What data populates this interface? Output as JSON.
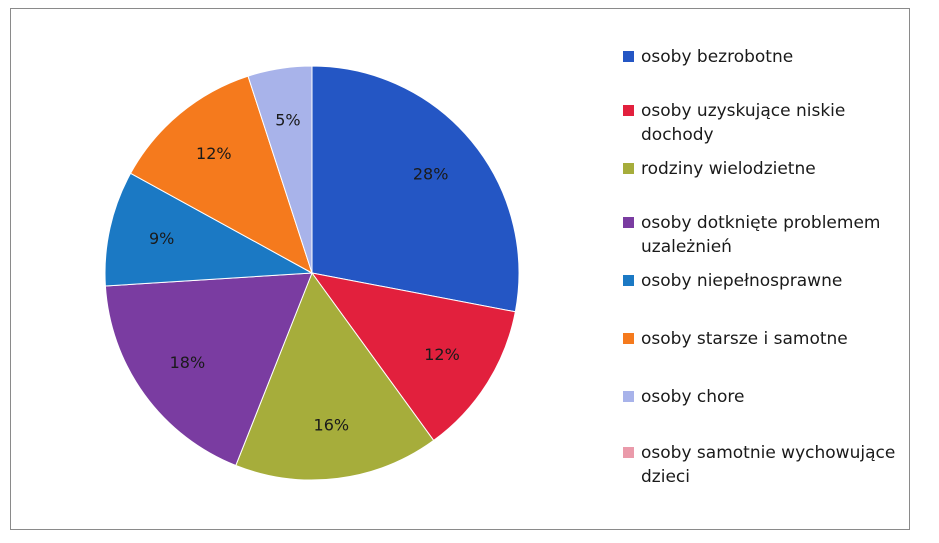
{
  "chart_data": {
    "type": "pie",
    "title": "",
    "legend_position": "right",
    "start_angle_deg": 0,
    "direction": "clockwise",
    "slices": [
      {
        "name": "osoby bezrobotne",
        "value": 28,
        "label": "28%",
        "color": "#2456c4"
      },
      {
        "name": "osoby uzyskujące niskie dochody",
        "value": 12,
        "label": "12%",
        "color": "#e2203d"
      },
      {
        "name": "rodziny wielodzietne",
        "value": 16,
        "label": "16%",
        "color": "#a6ad3b"
      },
      {
        "name": "osoby dotknięte problemem uzależnień",
        "value": 18,
        "label": "18%",
        "color": "#7a3ca1"
      },
      {
        "name": "osoby niepełnosprawne",
        "value": 9,
        "label": "9%",
        "color": "#1b79c4"
      },
      {
        "name": "osoby starsze i samotne",
        "value": 12,
        "label": "12%",
        "color": "#f57a1d"
      },
      {
        "name": "osoby chore",
        "value": 5,
        "label": "5%",
        "color": "#a8b3ea"
      },
      {
        "name": "osoby samotnie wychowujące dzieci",
        "value": 0,
        "label": "",
        "color": "#ea9aaa"
      }
    ]
  }
}
